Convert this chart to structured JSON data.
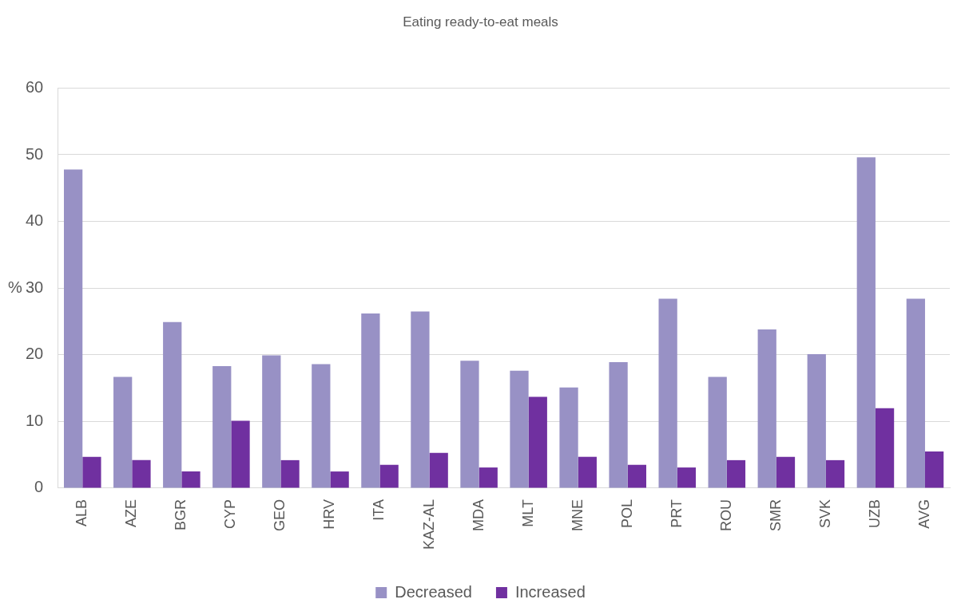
{
  "chart_data": {
    "type": "bar",
    "title": "Eating ready-to-eat meals",
    "ylabel": "%",
    "categories": [
      "ALB",
      "AZE",
      "BGR",
      "CYP",
      "GEO",
      "HRV",
      "ITA",
      "KAZ-AL",
      "MDA",
      "MLT",
      "MNE",
      "POL",
      "PRT",
      "ROU",
      "SMR",
      "SVK",
      "UZB",
      "AVG"
    ],
    "series": [
      {
        "name": "Decreased",
        "color": "#9891c5",
        "values": [
          47.8,
          16.7,
          24.9,
          18.3,
          19.9,
          18.6,
          26.2,
          26.5,
          19.1,
          17.6,
          15.1,
          18.9,
          28.4,
          16.7,
          23.8,
          20.1,
          49.6,
          28.4
        ]
      },
      {
        "name": "Increased",
        "color": "#7030a0",
        "values": [
          4.7,
          4.2,
          2.5,
          10.1,
          4.2,
          2.5,
          3.5,
          5.3,
          3.1,
          13.7,
          4.7,
          3.5,
          3.1,
          4.2,
          4.7,
          4.2,
          12.0,
          5.5
        ]
      }
    ],
    "ylim": [
      0,
      60
    ],
    "yticks": [
      0,
      10,
      20,
      30,
      40,
      50,
      60
    ],
    "grid": "y",
    "legend": "bottom"
  }
}
